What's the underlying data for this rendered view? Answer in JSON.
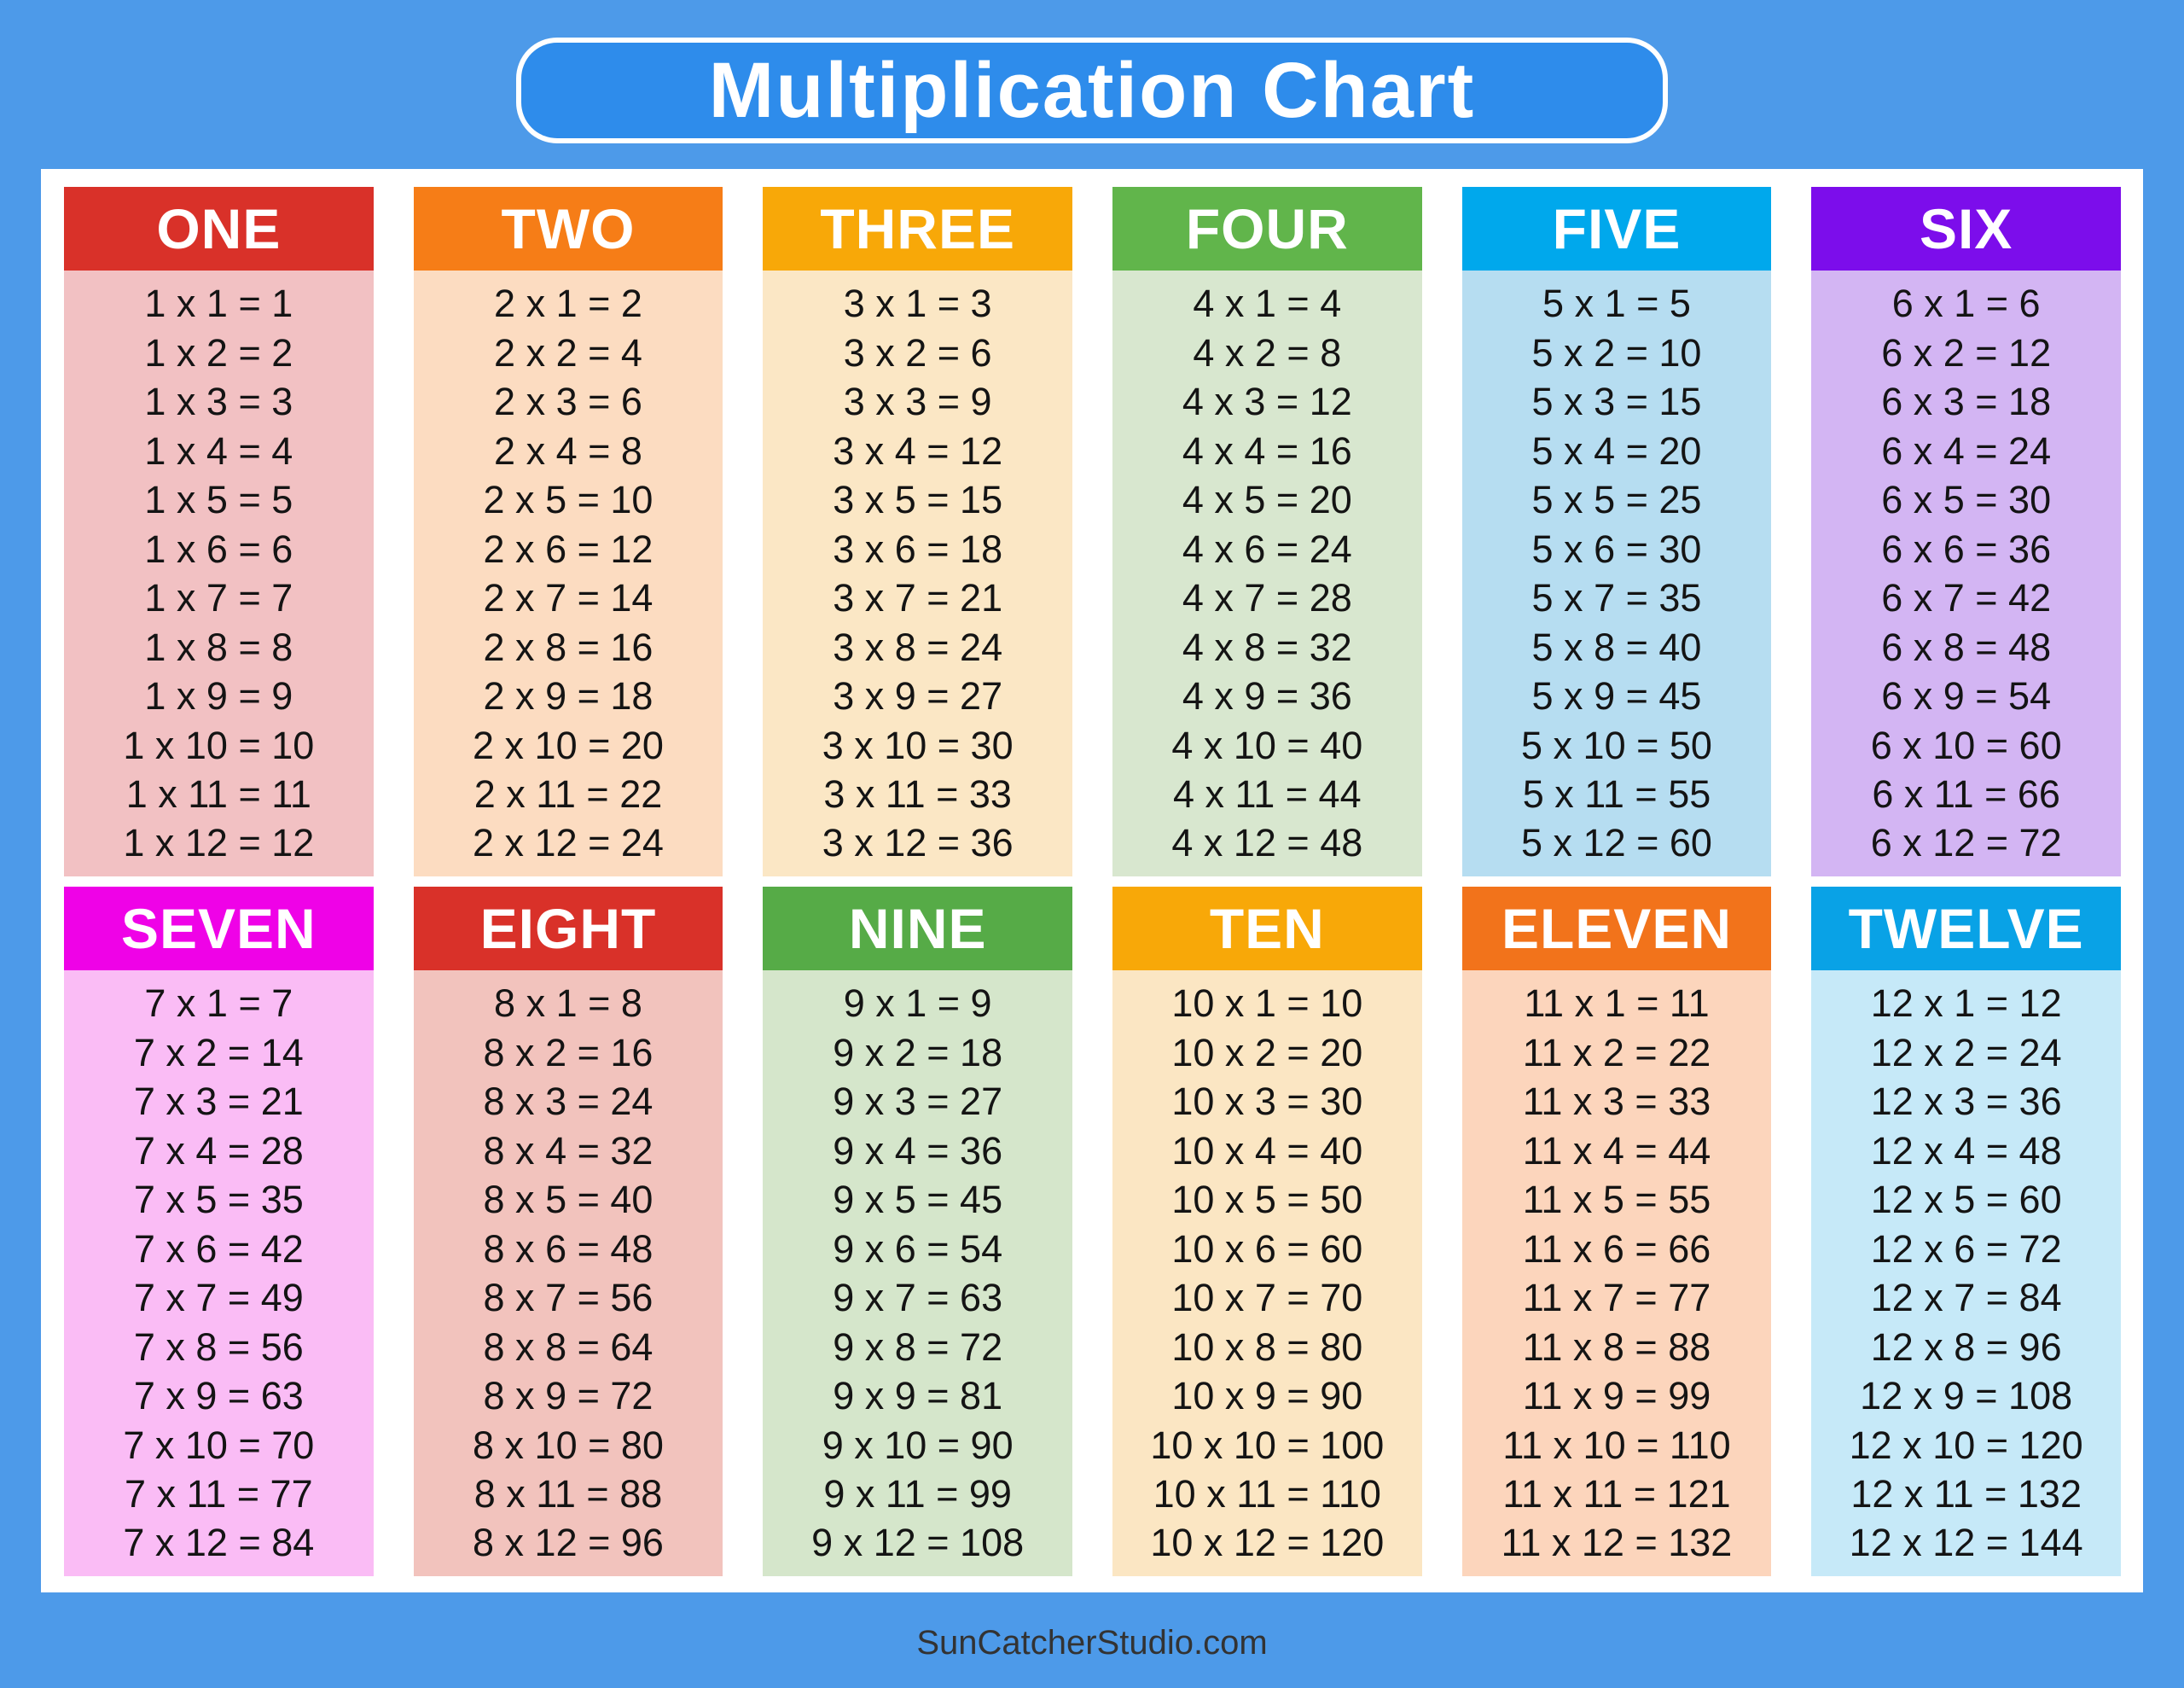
{
  "page": {
    "background_color": "#4d9ae9",
    "footer": "SunCatcherStudio.com"
  },
  "header": {
    "title": "Multiplication Chart",
    "box_color": "#2e8ceb",
    "border_color": "#ffffff"
  },
  "tables": [
    {
      "id": "one",
      "label": "ONE",
      "factor": 1,
      "header_color": "#d93129",
      "body_color": "#f2c1c3",
      "rows": [
        "1 x 1 = 1",
        "1 x 2 = 2",
        "1 x 3 = 3",
        "1 x 4 = 4",
        "1 x 5 = 5",
        "1 x 6 = 6",
        "1 x 7 = 7",
        "1 x 8 = 8",
        "1 x 9 = 9",
        "1 x 10 = 10",
        "1 x 11 = 11",
        "1 x 12 = 12"
      ]
    },
    {
      "id": "two",
      "label": "TWO",
      "factor": 2,
      "header_color": "#f67d17",
      "body_color": "#fcdcc1",
      "rows": [
        "2 x 1 = 2",
        "2 x 2 = 4",
        "2 x 3 = 6",
        "2 x 4 = 8",
        "2 x 5 = 10",
        "2 x 6 = 12",
        "2 x 7 = 14",
        "2 x 8 = 16",
        "2 x 9 = 18",
        "2 x 10 = 20",
        "2 x 11 = 22",
        "2 x 12 = 24"
      ]
    },
    {
      "id": "three",
      "label": "THREE",
      "factor": 3,
      "header_color": "#f8a808",
      "body_color": "#fbe7c5",
      "rows": [
        "3 x 1 = 3",
        "3 x 2 = 6",
        "3 x 3 = 9",
        "3 x 4 = 12",
        "3 x 5 = 15",
        "3 x 6 = 18",
        "3 x 7 = 21",
        "3 x 8 = 24",
        "3 x 9 = 27",
        "3 x 10 = 30",
        "3 x 11 = 33",
        "3 x 12 = 36"
      ]
    },
    {
      "id": "four",
      "label": "FOUR",
      "factor": 4,
      "header_color": "#61b54b",
      "body_color": "#d8e7cf",
      "rows": [
        "4 x 1 = 4",
        "4 x 2 = 8",
        "4 x 3 = 12",
        "4 x 4 = 16",
        "4 x 5 = 20",
        "4 x 6 = 24",
        "4 x 7 = 28",
        "4 x 8 = 32",
        "4 x 9 = 36",
        "4 x 10 = 40",
        "4 x 11 = 44",
        "4 x 12 = 48"
      ]
    },
    {
      "id": "five",
      "label": "FIVE",
      "factor": 5,
      "header_color": "#00a8ec",
      "body_color": "#b6ddf1",
      "rows": [
        "5 x 1 = 5",
        "5 x 2 = 10",
        "5 x 3 = 15",
        "5 x 4 = 20",
        "5 x 5 = 25",
        "5 x 6 = 30",
        "5 x 7 = 35",
        "5 x 8 = 40",
        "5 x 9 = 45",
        "5 x 10 = 50",
        "5 x 11 = 55",
        "5 x 12 = 60"
      ]
    },
    {
      "id": "six",
      "label": "SIX",
      "factor": 6,
      "header_color": "#7c0deb",
      "body_color": "#d3b5f3",
      "rows": [
        "6 x 1 = 6",
        "6 x 2 = 12",
        "6 x 3 = 18",
        "6 x 4 = 24",
        "6 x 5 = 30",
        "6 x 6 = 36",
        "6 x 7 = 42",
        "6 x 8 = 48",
        "6 x 9 = 54",
        "6 x 10 = 60",
        "6 x 11 = 66",
        "6 x 12 = 72"
      ]
    },
    {
      "id": "seven",
      "label": "SEVEN",
      "factor": 7,
      "header_color": "#ef02e7",
      "body_color": "#fabcf5",
      "rows": [
        "7 x 1 = 7",
        "7 x 2 = 14",
        "7 x 3 = 21",
        "7 x 4 = 28",
        "7 x 5 = 35",
        "7 x 6 = 42",
        "7 x 7 = 49",
        "7 x 8 = 56",
        "7 x 9 = 63",
        "7 x 10 = 70",
        "7 x 11 = 77",
        "7 x 12 = 84"
      ]
    },
    {
      "id": "eight",
      "label": "EIGHT",
      "factor": 8,
      "header_color": "#d93129",
      "body_color": "#f2c3bd",
      "rows": [
        "8 x 1 = 8",
        "8 x 2 = 16",
        "8 x 3 = 24",
        "8 x 4 = 32",
        "8 x 5 = 40",
        "8 x 6 = 48",
        "8 x 7 = 56",
        "8 x 8 = 64",
        "8 x 9 = 72",
        "8 x 10 = 80",
        "8 x 11 = 88",
        "8 x 12 = 96"
      ]
    },
    {
      "id": "nine",
      "label": "NINE",
      "factor": 9,
      "header_color": "#56ab47",
      "body_color": "#d5e6cb",
      "rows": [
        "9 x 1 = 9",
        "9 x 2 = 18",
        "9 x 3 = 27",
        "9 x 4 = 36",
        "9 x 5 = 45",
        "9 x 6 = 54",
        "9 x 7 = 63",
        "9 x 8 = 72",
        "9 x 9 = 81",
        "9 x 10 = 90",
        "9 x 11 = 99",
        "9 x 12 = 108"
      ]
    },
    {
      "id": "ten",
      "label": "TEN",
      "factor": 10,
      "header_color": "#f8a808",
      "body_color": "#fbe6c3",
      "rows": [
        "10 x 1 = 10",
        "10 x 2 = 20",
        "10 x 3 = 30",
        "10 x 4 = 40",
        "10 x 5 = 50",
        "10 x 6 = 60",
        "10 x 7 = 70",
        "10 x 8 = 80",
        "10 x 9 = 90",
        "10 x 10 = 100",
        "10 x 11 = 110",
        "10 x 12 = 120"
      ]
    },
    {
      "id": "eleven",
      "label": "ELEVEN",
      "factor": 11,
      "header_color": "#f2731b",
      "body_color": "#fcd5bc",
      "rows": [
        "11 x 1 = 11",
        "11 x 2 = 22",
        "11 x 3 = 33",
        "11 x 4 = 44",
        "11 x 5 = 55",
        "11 x 6 = 66",
        "11 x 7 = 77",
        "11 x 8 = 88",
        "11 x 9 = 99",
        "11 x 10 = 110",
        "11 x 11 = 121",
        "11 x 12 = 132"
      ]
    },
    {
      "id": "twelve",
      "label": "TWELVE",
      "factor": 12,
      "header_color": "#09a2e6",
      "body_color": "#c6e9f8",
      "rows": [
        "12 x 1 = 12",
        "12 x 2 = 24",
        "12 x 3 = 36",
        "12 x 4 = 48",
        "12 x 5 = 60",
        "12 x 6 = 72",
        "12 x 7 = 84",
        "12 x 8 = 96",
        "12 x 9 = 108",
        "12 x 10 = 120",
        "12 x 11 = 132",
        "12 x 12 = 144"
      ]
    }
  ]
}
